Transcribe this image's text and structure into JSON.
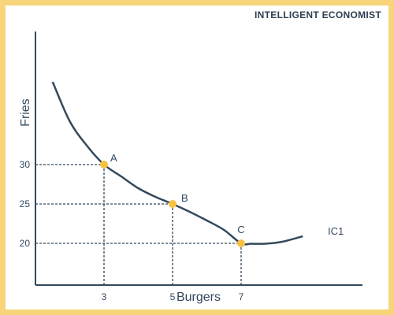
{
  "brand": {
    "text": "INTELLIGENT ECONOMIST"
  },
  "colors": {
    "curve": "#34495e",
    "axis": "#34495e",
    "guide": "#34495e",
    "point": "#f5c242",
    "border": "#f8d57a",
    "text": "#34495e"
  },
  "chart_data": {
    "type": "line",
    "title": "",
    "xlabel": "Burgers",
    "ylabel": "Fries",
    "x_ticks": [
      3,
      5,
      7
    ],
    "y_ticks": [
      20,
      25,
      30
    ],
    "series": [
      {
        "name": "IC1",
        "points": [
          [
            1.5,
            40.5
          ],
          [
            2.0,
            35.5
          ],
          [
            2.5,
            32.4
          ],
          [
            3.0,
            30.0
          ],
          [
            3.5,
            28.5
          ],
          [
            4.0,
            27.0
          ],
          [
            4.5,
            25.9
          ],
          [
            5.0,
            25.0
          ],
          [
            5.5,
            24.0
          ],
          [
            6.0,
            22.9
          ],
          [
            6.5,
            21.7
          ],
          [
            7.0,
            20.0
          ],
          [
            7.3,
            19.95
          ],
          [
            7.7,
            19.95
          ],
          [
            8.2,
            20.2
          ],
          [
            8.8,
            20.9
          ]
        ]
      }
    ],
    "points": [
      {
        "label": "A",
        "x": 3,
        "y": 30
      },
      {
        "label": "B",
        "x": 5,
        "y": 25
      },
      {
        "label": "C",
        "x": 7,
        "y": 20
      }
    ],
    "grid": false,
    "legend": "none"
  }
}
